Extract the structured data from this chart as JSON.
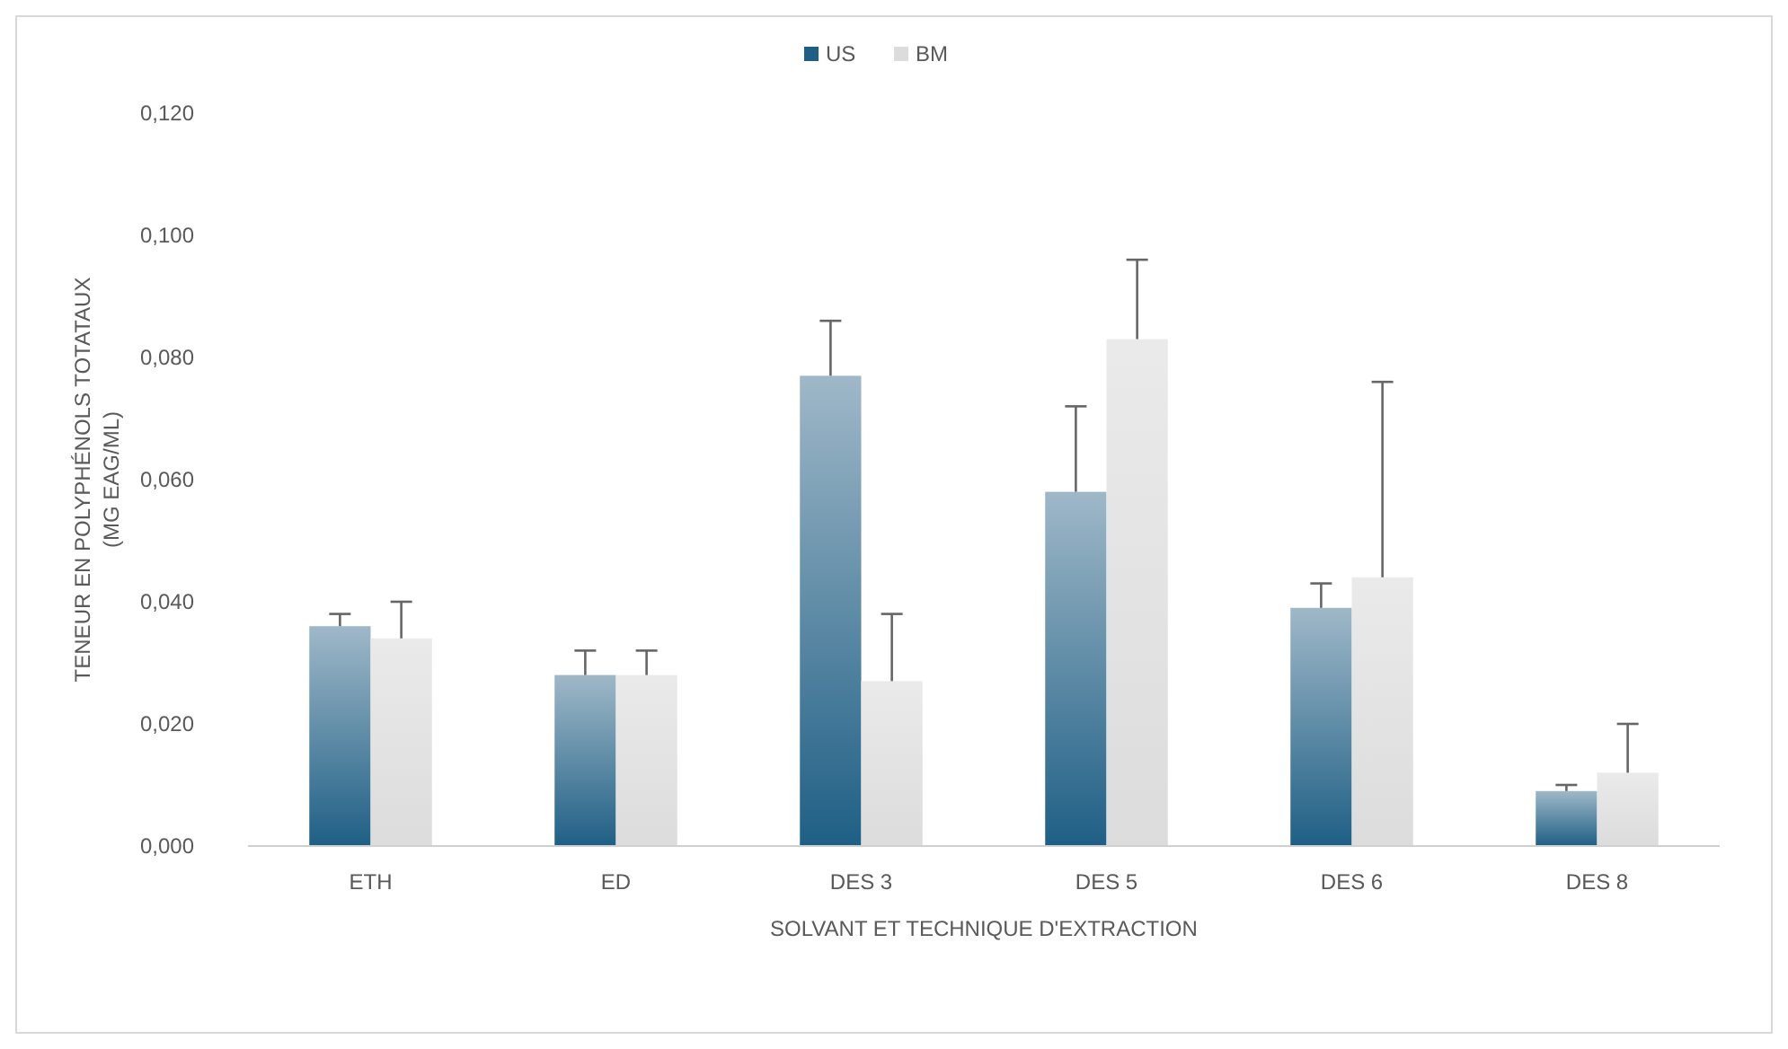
{
  "chart_data": {
    "type": "bar",
    "xlabel": "SOLVANT ET TECHNIQUE D'EXTRACTION",
    "ylabel": "TENEUR EN POLYPHÉNOLS TOTATAUX (MG EAG/ML)",
    "categories": [
      "ETH",
      "ED",
      "DES 3",
      "DES 5",
      "DES 6",
      "DES 8"
    ],
    "series": [
      {
        "name": "US",
        "color": "#1f5f85",
        "values": [
          0.036,
          0.028,
          0.077,
          0.058,
          0.039,
          0.009
        ],
        "errors": [
          [
            0.036,
            0.038
          ],
          [
            0.028,
            0.032
          ],
          [
            0.077,
            0.086
          ],
          [
            0.058,
            0.072
          ],
          [
            0.039,
            0.043
          ],
          [
            0.009,
            0.01
          ]
        ]
      },
      {
        "name": "BM",
        "color": "#dcdcdc",
        "values": [
          0.034,
          0.028,
          0.027,
          0.083,
          0.044,
          0.012
        ],
        "errors": [
          [
            0.034,
            0.04
          ],
          [
            0.028,
            0.032
          ],
          [
            0.027,
            0.038
          ],
          [
            0.083,
            0.096
          ],
          [
            0.044,
            0.076
          ],
          [
            0.012,
            0.02
          ]
        ]
      }
    ],
    "ylim": [
      0,
      0.12
    ],
    "yticks": [
      {
        "value": 0,
        "label": "0,000"
      },
      {
        "value": 0.02,
        "label": "0,020"
      },
      {
        "value": 0.04,
        "label": "0,040"
      },
      {
        "value": 0.06,
        "label": "0,060"
      },
      {
        "value": 0.08,
        "label": "0,080"
      },
      {
        "value": 0.1,
        "label": "0,100"
      },
      {
        "value": 0.12,
        "label": "0,120"
      }
    ],
    "grid": false,
    "legend": "top"
  }
}
